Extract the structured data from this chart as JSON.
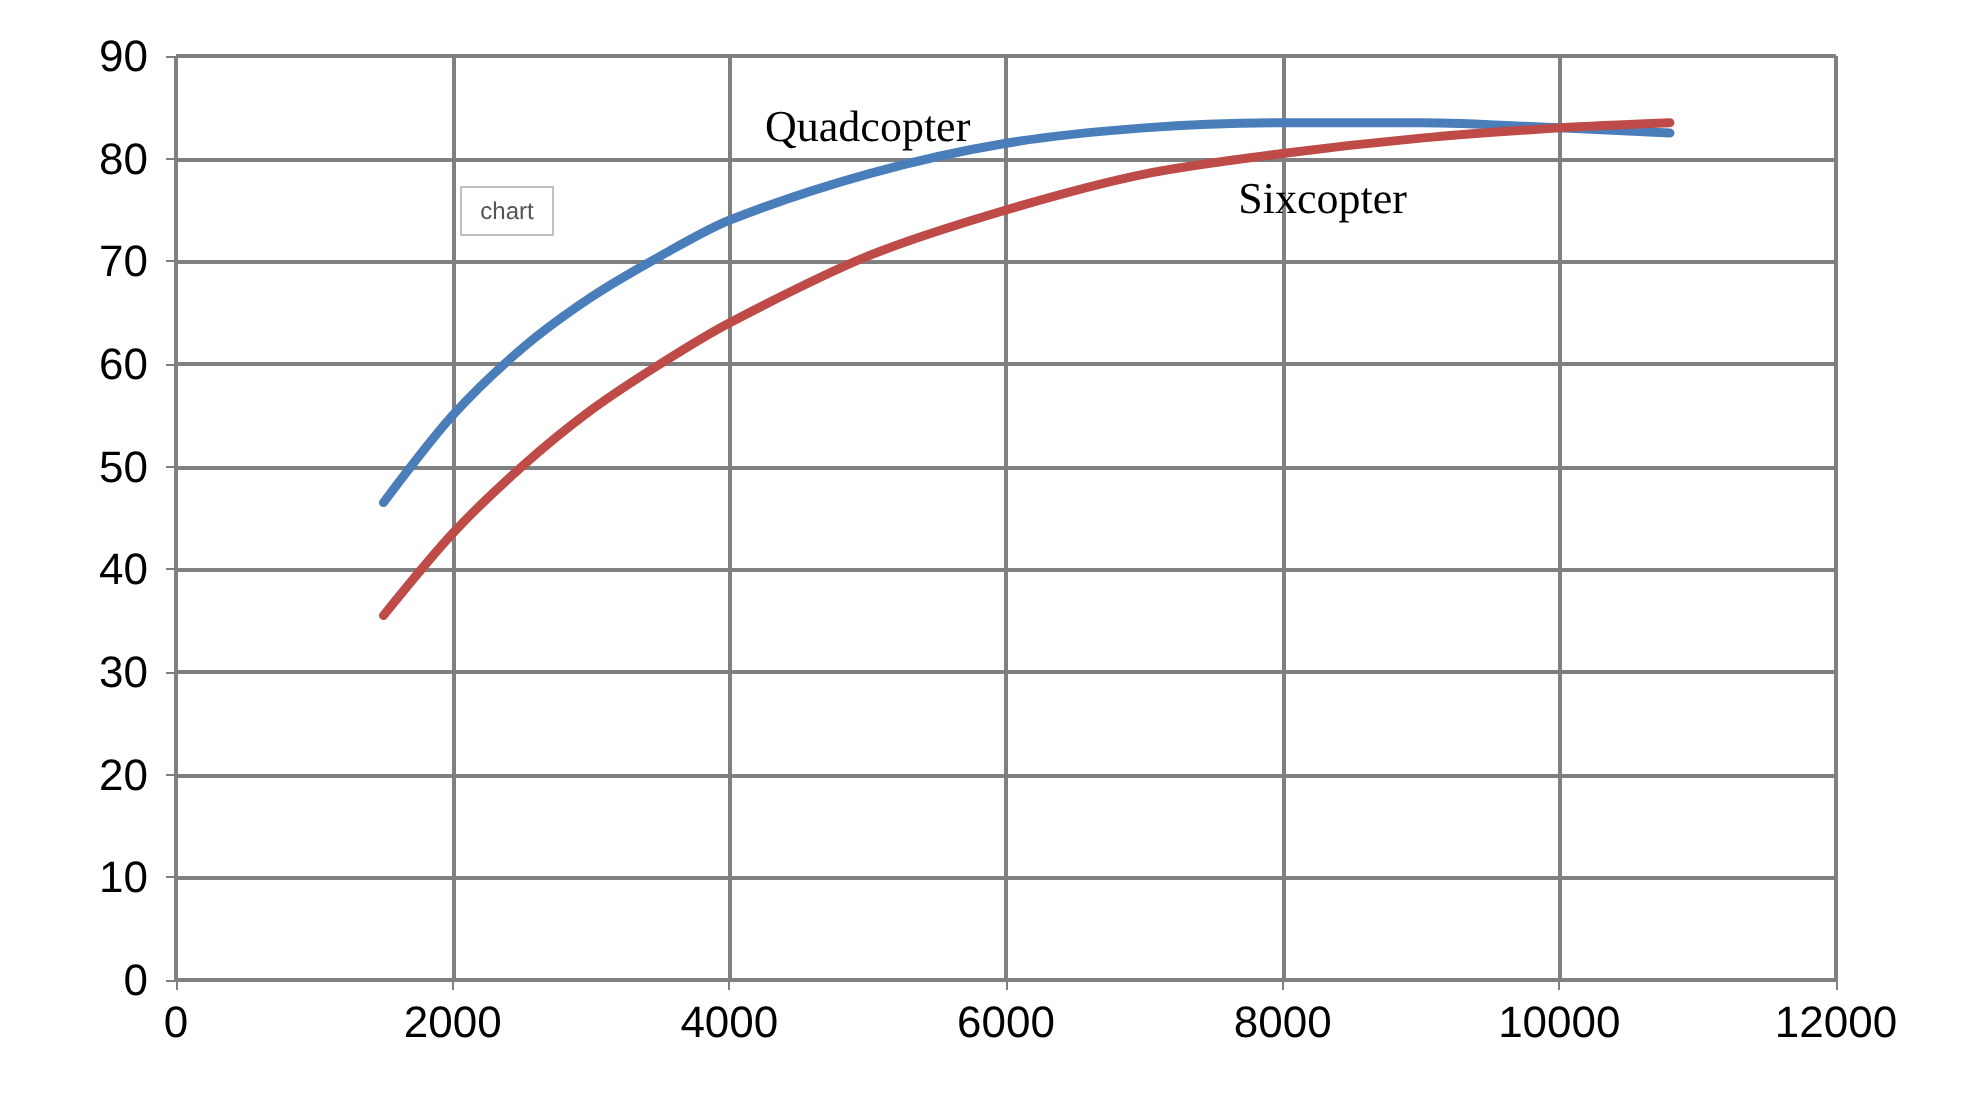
{
  "chart_data": {
    "type": "line",
    "x": [
      1500,
      2000,
      2500,
      3000,
      3500,
      4000,
      5000,
      6000,
      7000,
      8000,
      9000,
      10000,
      10800
    ],
    "series": [
      {
        "name": "Quadcopter",
        "color": "#4a7ebb",
        "values": [
          46.5,
          55,
          61.5,
          66.5,
          70.5,
          74,
          78.5,
          81.5,
          83,
          83.5,
          83.5,
          83,
          82.5
        ]
      },
      {
        "name": "Sixcopter",
        "color": "#be4b48",
        "values": [
          35.5,
          43.5,
          50,
          55.5,
          60,
          64,
          70.5,
          75,
          78.5,
          80.5,
          82,
          83,
          83.5
        ]
      }
    ],
    "xlim": [
      0,
      12000
    ],
    "xticks": [
      0,
      2000,
      4000,
      6000,
      8000,
      10000,
      12000
    ],
    "ylim": [
      0,
      90
    ],
    "yticks": [
      0,
      10,
      20,
      30,
      40,
      50,
      60,
      70,
      80,
      90
    ],
    "grid": true,
    "legend": false,
    "marker": "none",
    "line_style": "solid",
    "annotations": [
      "chart"
    ]
  }
}
